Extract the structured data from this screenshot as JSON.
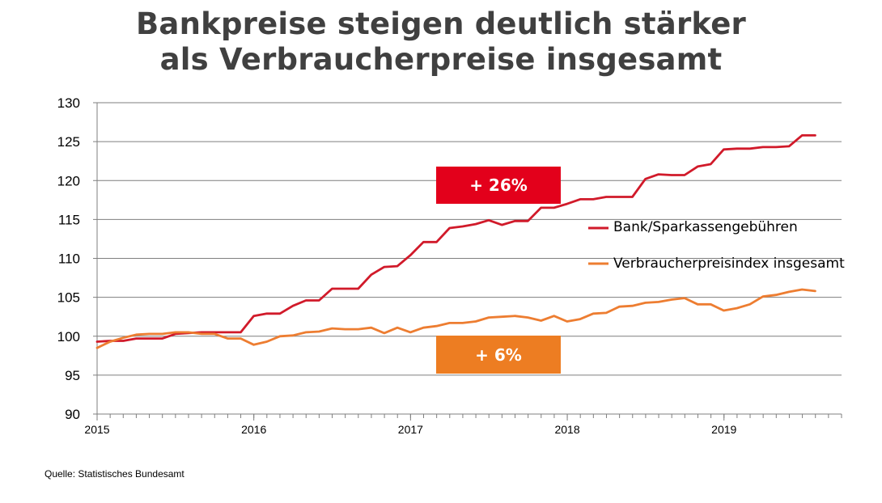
{
  "title_line1": "Bankpreise steigen deutlich stärker",
  "title_line2": "als Verbraucherpreise insgesamt",
  "source": "Quelle:  Statistisches Bundesamt",
  "colors": {
    "bank": "#d11a2a",
    "cpi": "#ed7d31",
    "bank_badge": "#e3001b",
    "cpi_badge": "#ed7d22",
    "grid": "#7f7f7f",
    "axis_text": "#000000"
  },
  "chart_data": {
    "type": "line",
    "ylim": [
      90,
      130
    ],
    "yticks": [
      90,
      95,
      100,
      105,
      110,
      115,
      120,
      125,
      130
    ],
    "xlim": [
      2015.0,
      2019.75
    ],
    "xticks": [
      {
        "value": 2015,
        "label": "2015"
      },
      {
        "value": 2016,
        "label": "2016"
      },
      {
        "value": 2017,
        "label": "2017"
      },
      {
        "value": 2018,
        "label": "2018"
      },
      {
        "value": 2019,
        "label": "2019"
      }
    ],
    "x_start": 2015.0,
    "x_step": 0.0833,
    "grid": "horizontal",
    "series": [
      {
        "name": "Bank/Sparkassengebühren",
        "color": "#d11a2a",
        "values": [
          99.3,
          99.4,
          99.4,
          99.7,
          99.7,
          99.7,
          100.3,
          100.4,
          100.5,
          100.5,
          100.5,
          100.5,
          102.6,
          102.9,
          102.9,
          103.9,
          104.6,
          104.6,
          106.1,
          106.1,
          106.1,
          107.9,
          108.9,
          109.0,
          110.4,
          112.1,
          112.1,
          113.9,
          114.1,
          114.4,
          114.9,
          114.3,
          114.8,
          114.8,
          116.5,
          116.5,
          117.0,
          117.6,
          117.6,
          117.9,
          117.9,
          117.9,
          120.2,
          120.8,
          120.7,
          120.7,
          121.8,
          122.1,
          124.0,
          124.1,
          124.1,
          124.3,
          124.3,
          124.4,
          125.8,
          125.8
        ]
      },
      {
        "name": "Verbraucherpreisindex insgesamt",
        "color": "#ed7d31",
        "values": [
          98.5,
          99.3,
          99.8,
          100.2,
          100.3,
          100.3,
          100.5,
          100.5,
          100.3,
          100.3,
          99.7,
          99.7,
          98.9,
          99.3,
          100.0,
          100.1,
          100.5,
          100.6,
          101.0,
          100.9,
          100.9,
          101.1,
          100.4,
          101.1,
          100.5,
          101.1,
          101.3,
          101.7,
          101.7,
          101.9,
          102.4,
          102.5,
          102.6,
          102.4,
          102.0,
          102.6,
          101.9,
          102.2,
          102.9,
          103.0,
          103.8,
          103.9,
          104.3,
          104.4,
          104.7,
          104.9,
          104.1,
          104.1,
          103.3,
          103.6,
          104.1,
          105.1,
          105.3,
          105.7,
          106.0,
          105.8
        ]
      }
    ],
    "annotations": [
      {
        "text": "+ 26%",
        "series": "bank"
      },
      {
        "text": "+ 6%",
        "series": "cpi"
      }
    ]
  }
}
